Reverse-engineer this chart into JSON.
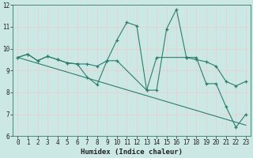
{
  "xlabel": "Humidex (Indice chaleur)",
  "xlim": [
    -0.5,
    23.5
  ],
  "ylim": [
    6,
    12
  ],
  "yticks": [
    6,
    7,
    8,
    9,
    10,
    11,
    12
  ],
  "xticks": [
    0,
    1,
    2,
    3,
    4,
    5,
    6,
    7,
    8,
    9,
    10,
    11,
    12,
    13,
    14,
    15,
    16,
    17,
    18,
    19,
    20,
    21,
    22,
    23
  ],
  "xticklabels": [
    "0",
    "1",
    "2",
    "3",
    "4",
    "5",
    "6",
    "7",
    "8",
    "9",
    "10",
    "11",
    "12",
    "13",
    "14",
    "15",
    "16",
    "17",
    "18",
    "19",
    "20",
    "21",
    "22",
    "23"
  ],
  "bg_color": "#cce8e4",
  "grid_color": "#e8d0d0",
  "line_color": "#2e7d6e",
  "series": [
    {
      "x": [
        0,
        1,
        2,
        3,
        4,
        5,
        6,
        7,
        8,
        9,
        10,
        11,
        12,
        13,
        14,
        15,
        16,
        17,
        18,
        19,
        20,
        21,
        22,
        23
      ],
      "y": [
        9.6,
        9.75,
        9.45,
        9.65,
        9.5,
        9.35,
        9.3,
        8.7,
        8.35,
        9.45,
        10.4,
        11.2,
        11.05,
        8.1,
        8.1,
        10.9,
        11.8,
        9.6,
        9.6,
        8.4,
        8.4,
        7.35,
        6.4,
        7.0
      ]
    },
    {
      "x": [
        0,
        1,
        2,
        3,
        4,
        5,
        6,
        7,
        8,
        9,
        10,
        13,
        14,
        17,
        18,
        19,
        20,
        21,
        22,
        23
      ],
      "y": [
        9.6,
        9.75,
        9.45,
        9.65,
        9.5,
        9.35,
        9.3,
        9.3,
        9.2,
        9.45,
        9.45,
        8.1,
        9.6,
        9.6,
        9.5,
        9.4,
        9.2,
        8.5,
        8.3,
        8.5
      ]
    },
    {
      "x": [
        0,
        23
      ],
      "y": [
        9.6,
        6.5
      ]
    }
  ]
}
